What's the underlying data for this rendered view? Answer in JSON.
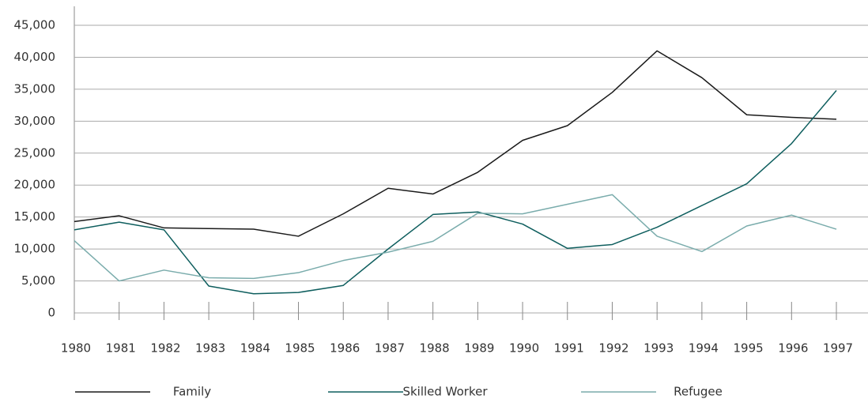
{
  "chart_data": {
    "type": "line",
    "x": [
      1980,
      1981,
      1982,
      1983,
      1984,
      1985,
      1986,
      1987,
      1988,
      1989,
      1990,
      1991,
      1992,
      1993,
      1994,
      1995,
      1996,
      1997
    ],
    "series": [
      {
        "name": "Family",
        "color": "#1a1a1a",
        "values": [
          14300,
          15200,
          13300,
          13200,
          13100,
          12000,
          15500,
          19500,
          18600,
          22000,
          27000,
          29300,
          34500,
          41000,
          36800,
          31000,
          30600,
          30300
        ]
      },
      {
        "name": "Skilled Worker",
        "color": "#0e5e5e",
        "values": [
          13000,
          14200,
          13000,
          4200,
          3000,
          3200,
          4300,
          10000,
          15400,
          15800,
          13900,
          10100,
          10700,
          13400,
          16800,
          20200,
          26500,
          34800
        ]
      },
      {
        "name": "Refugee",
        "color": "#7aacac",
        "values": [
          11300,
          5000,
          6700,
          5500,
          5400,
          6300,
          8200,
          9500,
          11200,
          15600,
          15500,
          17000,
          18500,
          12000,
          9600,
          13600,
          15300,
          13100
        ]
      }
    ],
    "xlim": [
      1980,
      1997
    ],
    "xticks": [
      1980,
      1981,
      1982,
      1983,
      1984,
      1985,
      1986,
      1987,
      1988,
      1989,
      1990,
      1991,
      1992,
      1993,
      1994,
      1995,
      1996,
      1997
    ],
    "ylim": [
      0,
      45000
    ],
    "yticks": [
      0,
      {
        "value": 5000,
        "label": "5,000"
      },
      {
        "value": 10000,
        "label": "10,000"
      },
      {
        "value": 15000,
        "label": "15,000"
      },
      {
        "value": 20000,
        "label": "20,000"
      },
      {
        "value": 25000,
        "label": "25,000"
      },
      {
        "value": 30000,
        "label": "30,000"
      },
      {
        "value": 35000,
        "label": "35,000"
      },
      {
        "value": 40000,
        "label": "40,000"
      },
      {
        "value": 45000,
        "label": "45,000"
      }
    ],
    "grid": true
  }
}
